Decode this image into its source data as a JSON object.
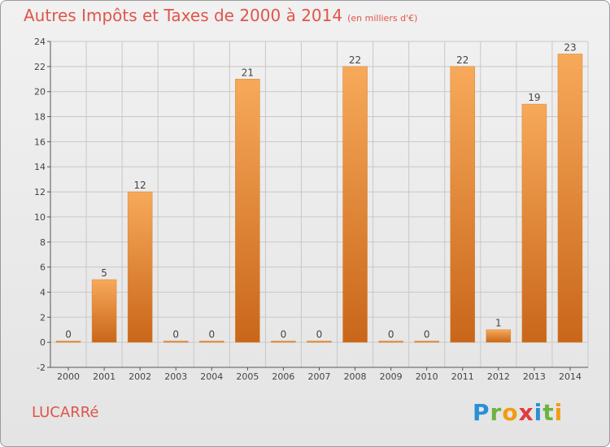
{
  "header": {
    "title": "Autres Impôts et Taxes de 2000 à 2014",
    "unit": "(en milliers d'€)"
  },
  "footer": {
    "place": "LUCARRé",
    "logo_letters": [
      {
        "ch": "P",
        "color": "#2a8fd6"
      },
      {
        "ch": "r",
        "color": "#6cb33f"
      },
      {
        "ch": "o",
        "color": "#f39c12"
      },
      {
        "ch": "x",
        "color": "#e23c3c"
      },
      {
        "ch": "i",
        "color": "#2a8fd6"
      },
      {
        "ch": "t",
        "color": "#6cb33f"
      },
      {
        "ch": "i",
        "color": "#f39c12"
      }
    ]
  },
  "chart_data": {
    "type": "bar",
    "categories": [
      "2000",
      "2001",
      "2002",
      "2003",
      "2004",
      "2005",
      "2006",
      "2007",
      "2008",
      "2009",
      "2010",
      "2011",
      "2012",
      "2013",
      "2014"
    ],
    "values": [
      0,
      5,
      12,
      0,
      0,
      21,
      0,
      0,
      22,
      0,
      0,
      22,
      1,
      19,
      23
    ],
    "ylim": [
      -2,
      24
    ],
    "yticks": [
      -2,
      0,
      2,
      4,
      6,
      8,
      10,
      12,
      14,
      16,
      18,
      20,
      22,
      24
    ],
    "grid": true,
    "bar_color_top": "#f7a95a",
    "bar_color_bottom": "#c9661a"
  }
}
